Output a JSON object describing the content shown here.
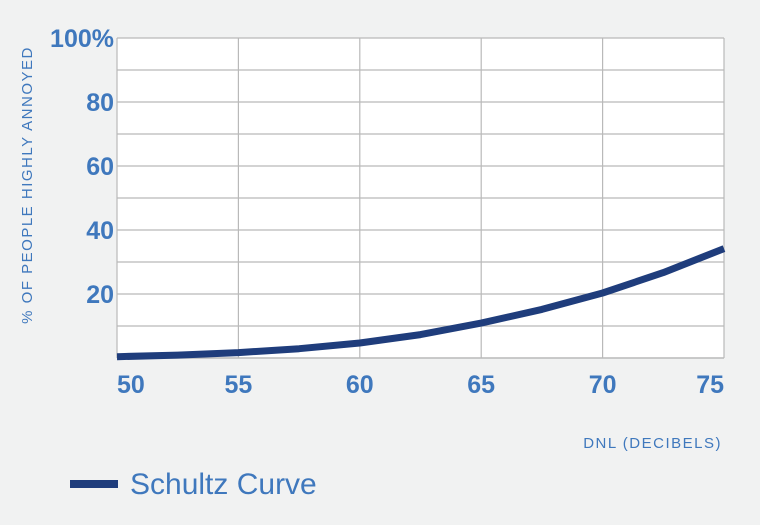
{
  "colors": {
    "background": "#f1f2f2",
    "plot_background": "#ffffff",
    "grid": "#b9b9b9",
    "label": "#3f78bd",
    "series": "#1f3d7c"
  },
  "chart_data": {
    "type": "line",
    "title": "",
    "xlabel": "DNL (DECIBELS)",
    "ylabel": "% OF PEOPLE HIGHLY ANNOYED",
    "xlim": [
      50,
      75
    ],
    "ylim": [
      0,
      100
    ],
    "x_ticks": [
      {
        "value": 50,
        "label": "50"
      },
      {
        "value": 55,
        "label": "55"
      },
      {
        "value": 60,
        "label": "60"
      },
      {
        "value": 65,
        "label": "65"
      },
      {
        "value": 70,
        "label": "70"
      },
      {
        "value": 75,
        "label": "75"
      }
    ],
    "y_ticks": [
      {
        "value": 20,
        "label": "20"
      },
      {
        "value": 40,
        "label": "40"
      },
      {
        "value": 60,
        "label": "60"
      },
      {
        "value": 80,
        "label": "80"
      },
      {
        "value": 100,
        "label": "100%"
      }
    ],
    "grid": true,
    "legend_position": "bottom-left",
    "series": [
      {
        "name": "Schultz Curve",
        "x": [
          50,
          52.5,
          55,
          57.5,
          60,
          62.5,
          65,
          67.5,
          70,
          72.5,
          75
        ],
        "y": [
          0.4,
          0.9,
          1.7,
          2.9,
          4.7,
          7.3,
          10.9,
          15.2,
          20.3,
          26.7,
          34.2
        ]
      }
    ]
  }
}
